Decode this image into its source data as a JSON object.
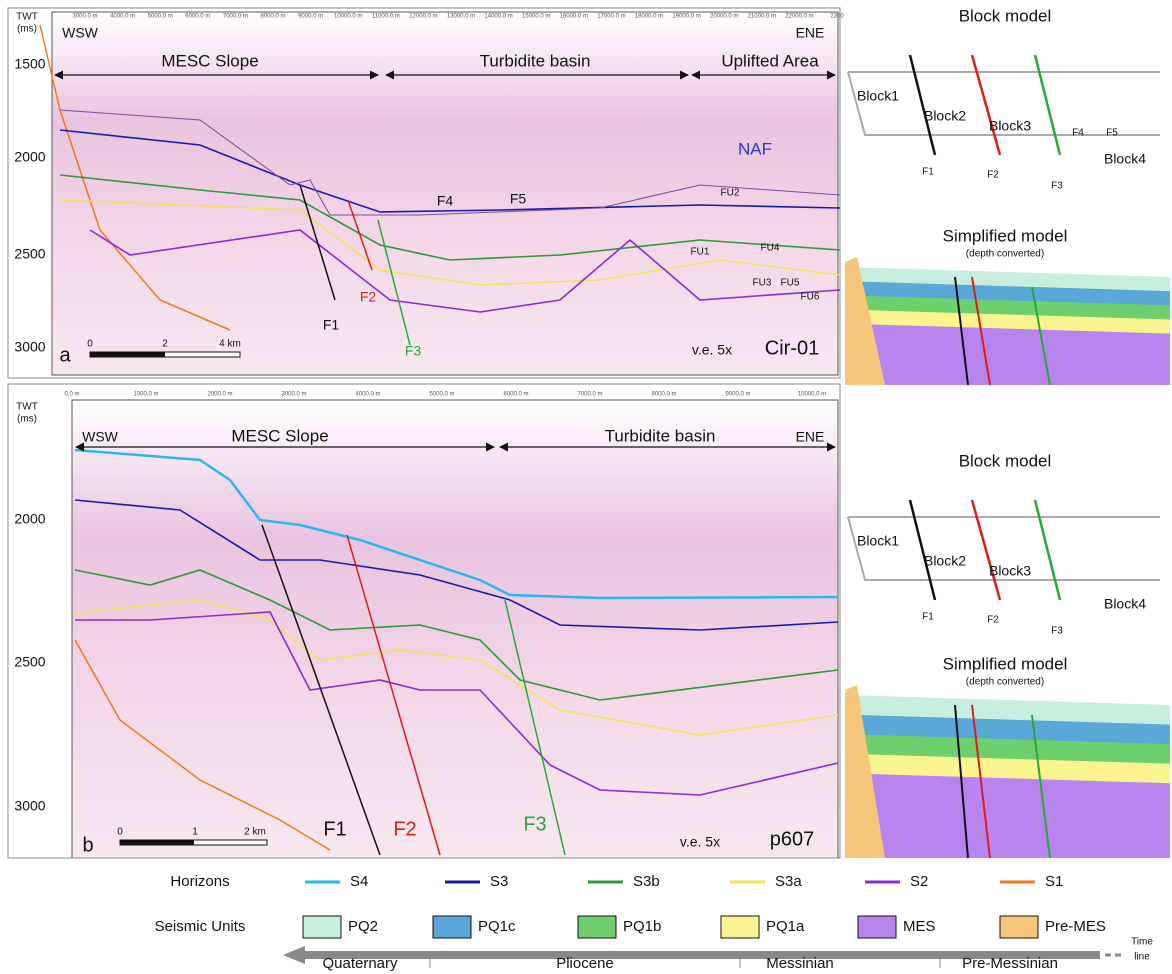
{
  "panel_a": {
    "label": "a",
    "axis_title": "TWT",
    "axis_unit": "(ms)",
    "yticks": [
      "1500",
      "2000",
      "2500",
      "3000"
    ],
    "ruler": [
      "3000.0 m",
      "4000.0 m",
      "5000.0 m",
      "6000.0 m",
      "7000.0 m",
      "8000.0 m",
      "9000.0 m",
      "10000.0 m",
      "11000.0 m",
      "12000.0 m",
      "13000.0 m",
      "14000.0 m",
      "15000.0 m",
      "16000.0 m",
      "17000.0 m",
      "18000.0 m",
      "19000.0 m",
      "20000.0 m",
      "21000.0 m",
      "22000.0 m",
      "2300"
    ],
    "west": "WSW",
    "east": "ENE",
    "zones": [
      "MESC Slope",
      "Turbidite basin",
      "Uplifted Area"
    ],
    "region": "NAF",
    "faults": [
      "F1",
      "F2",
      "F3",
      "F4",
      "F5",
      "FU1",
      "FU2",
      "FU3",
      "FU4",
      "FU5",
      "FU6"
    ],
    "scale": [
      "0",
      "2",
      "4 km"
    ],
    "exaggeration": "v.e. 5x",
    "line_name": "Cir-01",
    "block_model": {
      "title": "Block model",
      "blocks": [
        "Block1",
        "Block2",
        "Block3",
        "Block4"
      ],
      "faults": [
        "F1",
        "F2",
        "F3",
        "F4",
        "F5"
      ]
    },
    "simplified": {
      "title": "Simplified model",
      "subtitle": "(depth converted)"
    }
  },
  "panel_b": {
    "label": "b",
    "axis_title": "TWT",
    "axis_unit": "(ms)",
    "yticks": [
      "2000",
      "2500",
      "3000"
    ],
    "ruler": [
      "0.0 m",
      "1000.0 m",
      "2000.0 m",
      "3000.0 m",
      "4000.0 m",
      "5000.0 m",
      "6000.0 m",
      "7000.0 m",
      "8000.0 m",
      "9000.0 m",
      "10000.0 m"
    ],
    "west": "WSW",
    "east": "ENE",
    "zones": [
      "MESC Slope",
      "Turbidite basin"
    ],
    "faults": [
      "F1",
      "F2",
      "F3"
    ],
    "scale": [
      "0",
      "1",
      "2 km"
    ],
    "exaggeration": "v.e. 5x",
    "line_name": "p607",
    "block_model": {
      "title": "Block model",
      "blocks": [
        "Block1",
        "Block2",
        "Block3",
        "Block4"
      ],
      "faults": [
        "F1",
        "F2",
        "F3"
      ]
    },
    "simplified": {
      "title": "Simplified model",
      "subtitle": "(depth converted)"
    }
  },
  "legend": {
    "horizons_title": "Horizons",
    "horizons": [
      {
        "name": "S4",
        "color": "#2cb7ea"
      },
      {
        "name": "S3",
        "color": "#1a1aa8"
      },
      {
        "name": "S3b",
        "color": "#2a9a3a"
      },
      {
        "name": "S3a",
        "color": "#f3e35a"
      },
      {
        "name": "S2",
        "color": "#8b2bd0"
      },
      {
        "name": "S1",
        "color": "#f07a20"
      }
    ],
    "units_title": "Seismic Units",
    "units": [
      {
        "name": "PQ2",
        "color": "#c8eedd"
      },
      {
        "name": "PQ1c",
        "color": "#5aa8d8"
      },
      {
        "name": "PQ1b",
        "color": "#6dcf6d"
      },
      {
        "name": "PQ1a",
        "color": "#fbf58f"
      },
      {
        "name": "MES",
        "color": "#b784f0"
      },
      {
        "name": "Pre-MES",
        "color": "#f6c77a"
      }
    ],
    "timeline": [
      "Quaternary",
      "Pliocene",
      "Messinian",
      "Pre-Messinian"
    ],
    "timeline_title": [
      "Time",
      "line"
    ]
  }
}
